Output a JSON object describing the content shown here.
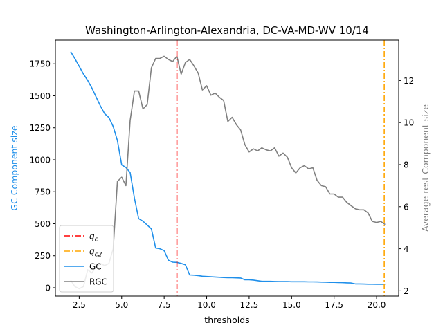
{
  "chart_data": {
    "type": "line",
    "title": "Washington-Arlington-Alexandria, DC-VA-MD-WV 10/14",
    "xlabel": "thresholds",
    "ylabel_left": "GC Component size",
    "ylabel_right": "Average rest Component size",
    "xlim": [
      1.1,
      21.3
    ],
    "ylim_left": [
      -65,
      1935
    ],
    "ylim_right": [
      1.75,
      13.92
    ],
    "x_ticks": [
      2.5,
      5.0,
      7.5,
      10.0,
      12.5,
      15.0,
      17.5,
      20.0
    ],
    "x_tick_labels": [
      "2.5",
      "5.0",
      "7.5",
      "10.0",
      "12.5",
      "15.0",
      "17.5",
      "20.0"
    ],
    "y_left_ticks": [
      0,
      250,
      500,
      750,
      1000,
      1250,
      1500,
      1750
    ],
    "y_left_tick_labels": [
      "0",
      "250",
      "500",
      "750",
      "1000",
      "1250",
      "1500",
      "1750"
    ],
    "y_right_ticks": [
      2,
      4,
      6,
      8,
      10,
      12
    ],
    "y_right_tick_labels": [
      "2",
      "4",
      "6",
      "8",
      "10",
      "12"
    ],
    "colors": {
      "gc": "#1f8fea",
      "rgc": "#808080",
      "qc": "#ff0000",
      "qc2": "#ffa500",
      "left_label": "#1f8fea",
      "right_label": "#808080"
    },
    "vlines": [
      {
        "label": "q_c",
        "x": 8.25,
        "color": "#ff0000"
      },
      {
        "label": "q_c2",
        "x": 20.45,
        "color": "#ffa500"
      }
    ],
    "legend": {
      "position": "lower-left",
      "entries": [
        {
          "label": "q",
          "sub": "c",
          "style": "dashdot",
          "color": "#ff0000"
        },
        {
          "label": "q",
          "sub": "c2",
          "style": "dashdot",
          "color": "#ffa500"
        },
        {
          "label": "GC",
          "style": "solid",
          "color": "#1f8fea"
        },
        {
          "label": "RGC",
          "style": "solid",
          "color": "#808080"
        }
      ]
    },
    "series": [
      {
        "name": "GC",
        "axis": "left",
        "x": [
          2.0,
          2.25,
          2.5,
          2.75,
          3.0,
          3.25,
          3.5,
          3.75,
          4.0,
          4.25,
          4.5,
          4.75,
          5.0,
          5.25,
          5.5,
          5.75,
          6.0,
          6.25,
          6.5,
          6.75,
          7.0,
          7.25,
          7.5,
          7.75,
          8.0,
          8.25,
          8.5,
          8.75,
          9.0,
          9.25,
          9.5,
          9.75,
          10.0,
          10.25,
          10.5,
          10.75,
          11.0,
          11.25,
          11.5,
          11.75,
          12.0,
          12.25,
          12.5,
          12.75,
          13.0,
          13.25,
          13.5,
          13.75,
          14.0,
          14.25,
          14.5,
          14.75,
          15.0,
          15.25,
          15.5,
          15.75,
          16.0,
          16.25,
          16.5,
          16.75,
          17.0,
          17.25,
          17.5,
          17.75,
          18.0,
          18.25,
          18.5,
          18.75,
          19.0,
          19.25,
          19.5,
          19.75,
          20.0,
          20.25,
          20.5
        ],
        "values": [
          1845,
          1790,
          1730,
          1670,
          1620,
          1560,
          1490,
          1420,
          1360,
          1330,
          1260,
          1150,
          960,
          940,
          900,
          700,
          540,
          520,
          490,
          460,
          310,
          305,
          290,
          215,
          200,
          198,
          190,
          180,
          100,
          98,
          95,
          90,
          88,
          86,
          84,
          82,
          80,
          79,
          78,
          77,
          76,
          62,
          62,
          60,
          55,
          50,
          50,
          50,
          49,
          48,
          48,
          48,
          47,
          47,
          47,
          47,
          46,
          46,
          45,
          44,
          43,
          42,
          42,
          41,
          40,
          38,
          37,
          30,
          30,
          29,
          28,
          28,
          27,
          27,
          27
        ]
      },
      {
        "name": "RGC",
        "axis": "right",
        "x": [
          2.0,
          2.25,
          2.5,
          2.75,
          3.0,
          3.25,
          3.5,
          3.75,
          4.0,
          4.25,
          4.5,
          4.75,
          5.0,
          5.25,
          5.5,
          5.75,
          6.0,
          6.25,
          6.5,
          6.75,
          7.0,
          7.25,
          7.5,
          7.75,
          8.0,
          8.25,
          8.5,
          8.75,
          9.0,
          9.25,
          9.5,
          9.75,
          10.0,
          10.25,
          10.5,
          10.75,
          11.0,
          11.25,
          11.5,
          11.75,
          12.0,
          12.25,
          12.5,
          12.75,
          13.0,
          13.25,
          13.5,
          13.75,
          14.0,
          14.25,
          14.5,
          14.75,
          15.0,
          15.25,
          15.5,
          15.75,
          16.0,
          16.25,
          16.5,
          16.75,
          17.0,
          17.25,
          17.5,
          17.75,
          18.0,
          18.25,
          18.5,
          18.75,
          19.0,
          19.25,
          19.5,
          19.75,
          20.0,
          20.25,
          20.5
        ],
        "values": [
          2.5,
          2.2,
          2.1,
          2.2,
          3.0,
          2.85,
          3.15,
          3.3,
          3.2,
          3.3,
          4.0,
          7.2,
          7.4,
          7.0,
          10.1,
          11.5,
          11.5,
          10.65,
          10.85,
          12.6,
          13.05,
          13.05,
          13.15,
          13.0,
          12.9,
          13.15,
          12.3,
          12.85,
          13.0,
          12.7,
          12.35,
          11.55,
          11.75,
          11.3,
          11.4,
          11.2,
          11.05,
          10.05,
          10.25,
          9.9,
          9.65,
          8.95,
          8.6,
          8.75,
          8.65,
          8.8,
          8.7,
          8.65,
          8.8,
          8.4,
          8.55,
          8.35,
          7.85,
          7.6,
          7.85,
          7.95,
          7.8,
          7.85,
          7.25,
          7.0,
          6.95,
          6.6,
          6.6,
          6.45,
          6.45,
          6.2,
          6.05,
          5.9,
          5.85,
          5.85,
          5.7,
          5.3,
          5.25,
          5.3,
          5.15
        ]
      }
    ]
  }
}
